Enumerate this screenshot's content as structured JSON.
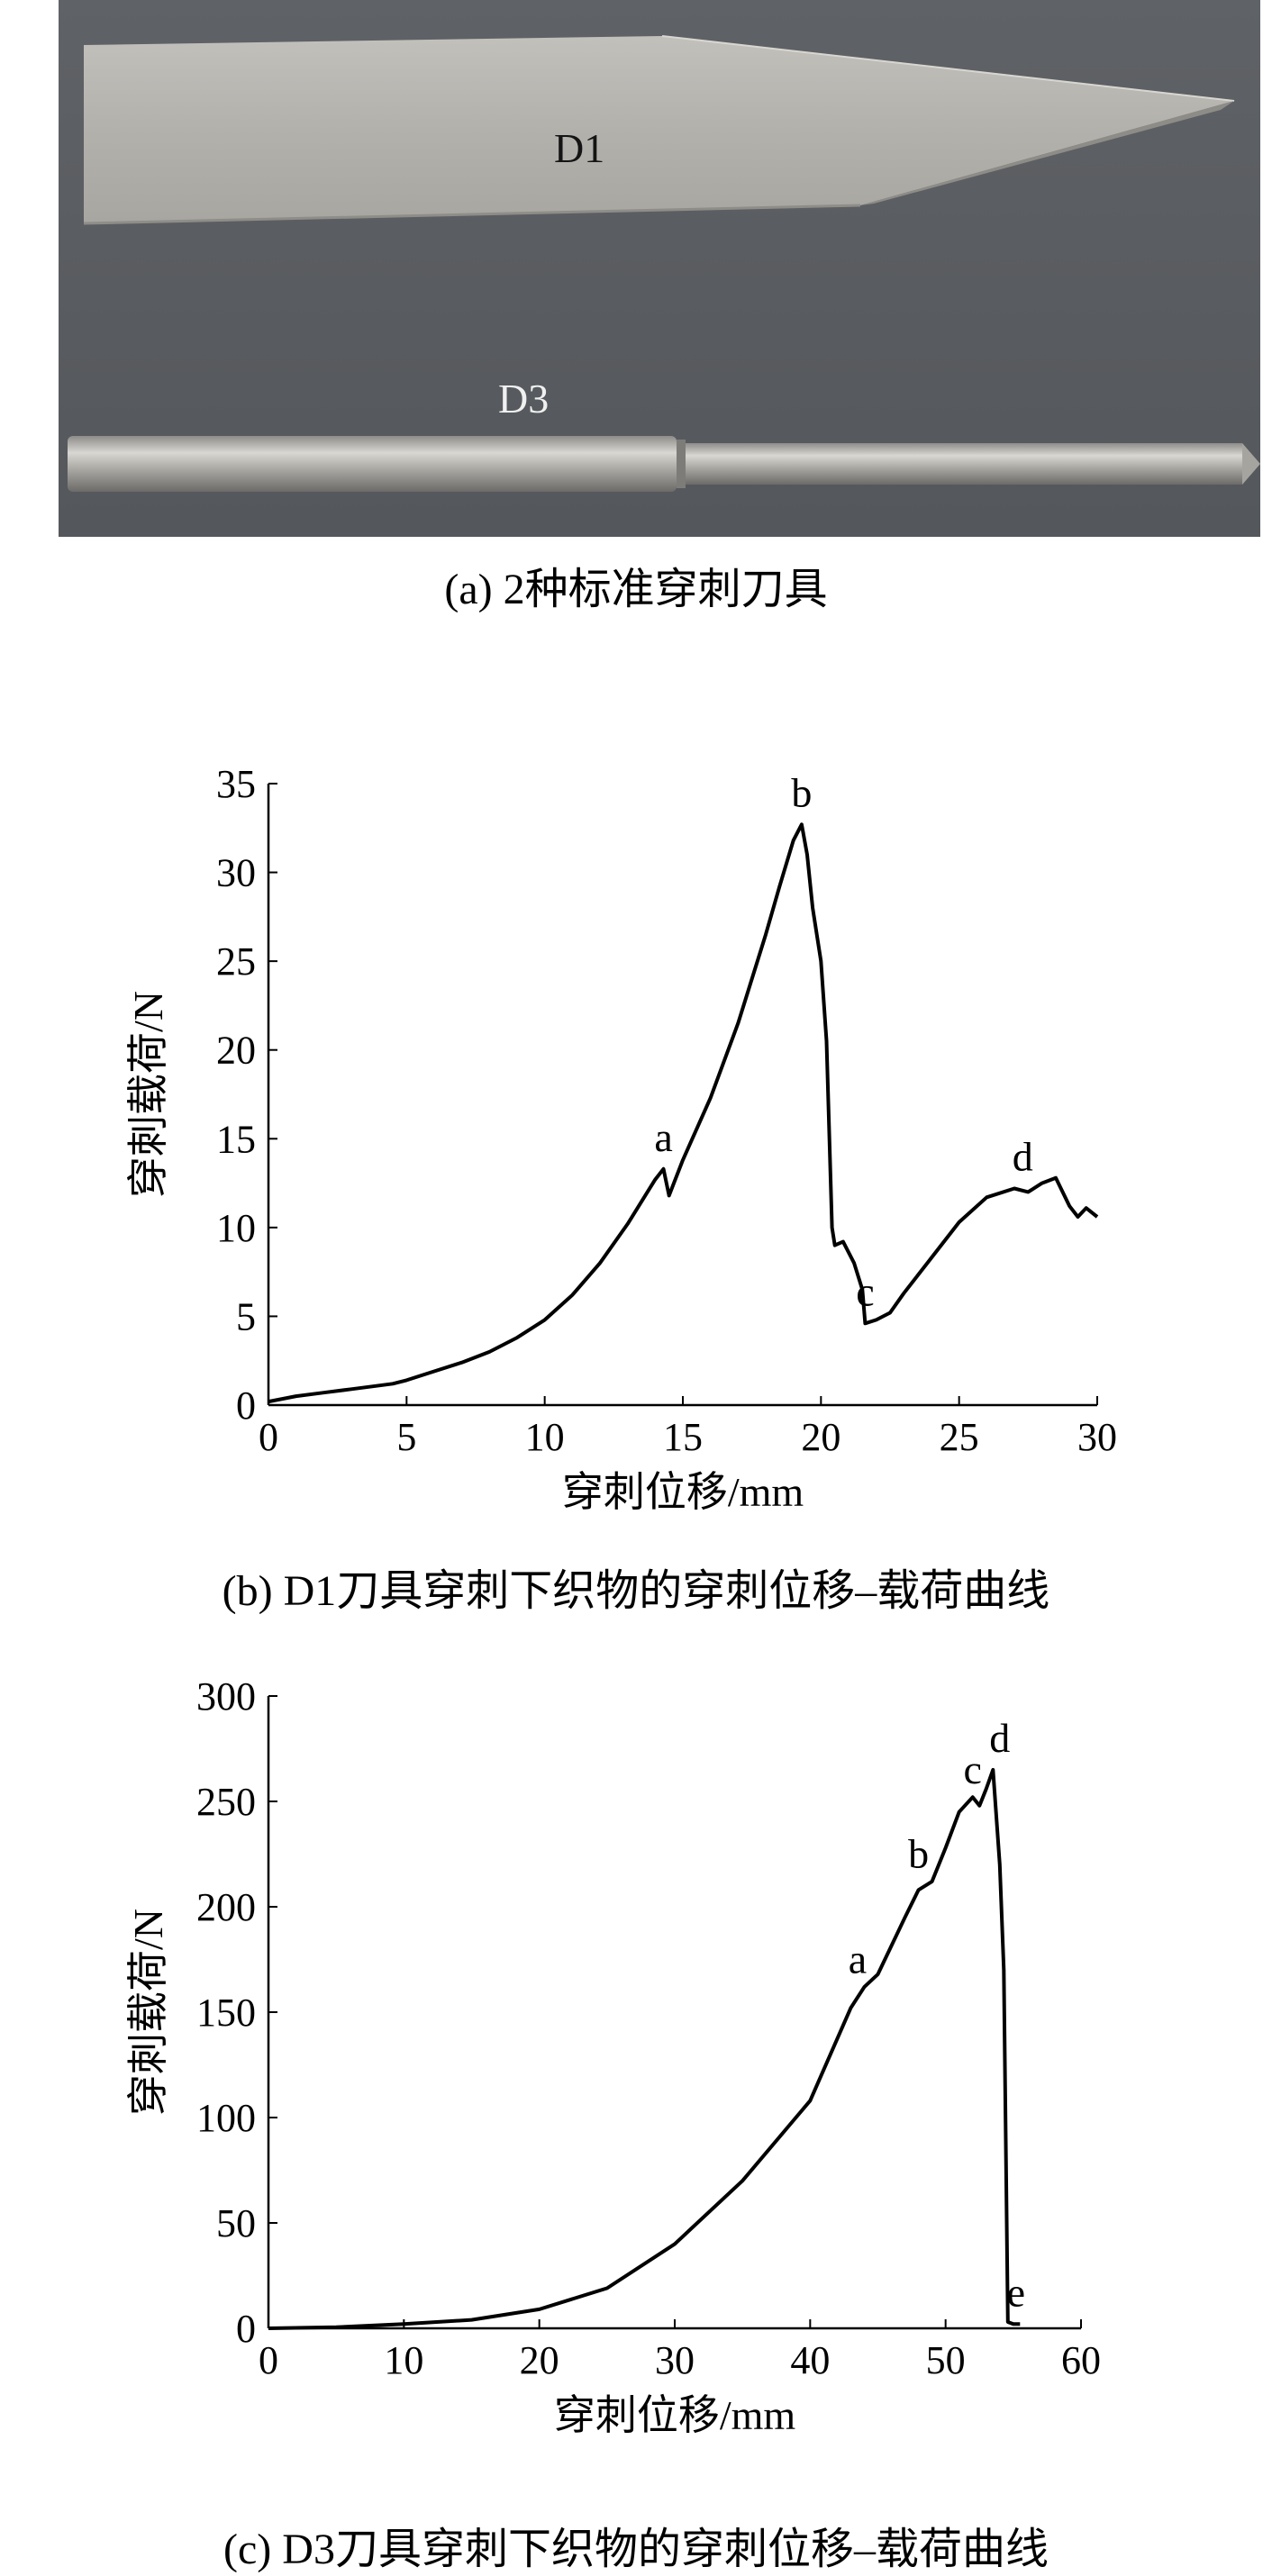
{
  "panel_a": {
    "caption": "(a) 2种标准穿刺刀具",
    "blade_label": "D1",
    "needle_label": "D3"
  },
  "panel_b": {
    "caption": "(b) D1刀具穿刺下织物的穿刺位移–载荷曲线"
  },
  "panel_c": {
    "caption": "(c) D3刀具穿刺下织物的穿刺位移–载荷曲线"
  },
  "chart_data": [
    {
      "type": "line",
      "xlabel": "穿刺位移/mm",
      "ylabel": "穿刺载荷/N",
      "xlim": [
        0,
        30
      ],
      "ylim": [
        0,
        35
      ],
      "xticks": [
        0,
        5,
        10,
        15,
        20,
        25,
        30
      ],
      "yticks": [
        0,
        5,
        10,
        15,
        20,
        25,
        30,
        35
      ],
      "x": [
        0,
        1,
        2,
        3,
        4,
        4.5,
        5,
        6,
        7,
        8,
        9,
        10,
        11,
        12,
        13,
        14,
        14.3,
        14.5,
        15,
        16,
        17,
        18,
        18.5,
        19,
        19.3,
        19.5,
        19.7,
        20,
        20.2,
        20.4,
        20.5,
        20.8,
        21.2,
        21.5,
        21.6,
        22,
        22.5,
        23,
        24,
        25,
        26,
        27,
        27.5,
        28,
        28.5,
        29,
        29.3,
        29.6,
        30
      ],
      "series": [
        {
          "values": [
            0.2,
            0.5,
            0.7,
            0.9,
            1.1,
            1.2,
            1.4,
            1.9,
            2.4,
            3.0,
            3.8,
            4.8,
            6.2,
            8.0,
            10.2,
            12.7,
            13.3,
            11.8,
            13.8,
            17.3,
            21.5,
            26.5,
            29.2,
            31.8,
            32.7,
            31.0,
            28.0,
            25.0,
            20.5,
            10.0,
            9.0,
            9.2,
            8.0,
            6.5,
            4.6,
            4.8,
            5.2,
            6.3,
            8.3,
            10.3,
            11.7,
            12.2,
            12.0,
            12.5,
            12.8,
            11.2,
            10.6,
            11.1,
            10.6
          ]
        }
      ],
      "annotations": [
        {
          "text": "a",
          "x": 14.3,
          "y": 13.3
        },
        {
          "text": "b",
          "x": 19.3,
          "y": 32.7
        },
        {
          "text": "c",
          "x": 21.6,
          "y": 4.6
        },
        {
          "text": "d",
          "x": 27.3,
          "y": 12.2
        }
      ]
    },
    {
      "type": "line",
      "xlabel": "穿刺位移/mm",
      "ylabel": "穿刺载荷/N",
      "xlim": [
        0,
        60
      ],
      "ylim": [
        0,
        300
      ],
      "xticks": [
        0,
        10,
        20,
        30,
        40,
        50,
        60
      ],
      "yticks": [
        0,
        50,
        100,
        150,
        200,
        250,
        300
      ],
      "x": [
        0,
        5,
        10,
        15,
        20,
        25,
        30,
        35,
        40,
        43,
        44,
        45,
        47,
        48,
        49,
        50,
        51,
        52,
        52.5,
        53,
        53.5,
        54,
        54.3,
        54.6,
        55,
        55.5
      ],
      "series": [
        {
          "values": [
            0,
            0.5,
            2,
            4,
            9,
            19,
            40,
            70,
            108,
            152,
            162,
            168,
            195,
            208,
            212,
            228,
            245,
            252,
            248,
            256,
            265,
            220,
            170,
            3,
            2,
            2
          ]
        }
      ],
      "annotations": [
        {
          "text": "a",
          "x": 43.5,
          "y": 160
        },
        {
          "text": "b",
          "x": 48,
          "y": 210
        },
        {
          "text": "c",
          "x": 52,
          "y": 250
        },
        {
          "text": "d",
          "x": 54,
          "y": 265
        },
        {
          "text": "e",
          "x": 55.2,
          "y": 2
        }
      ]
    }
  ]
}
